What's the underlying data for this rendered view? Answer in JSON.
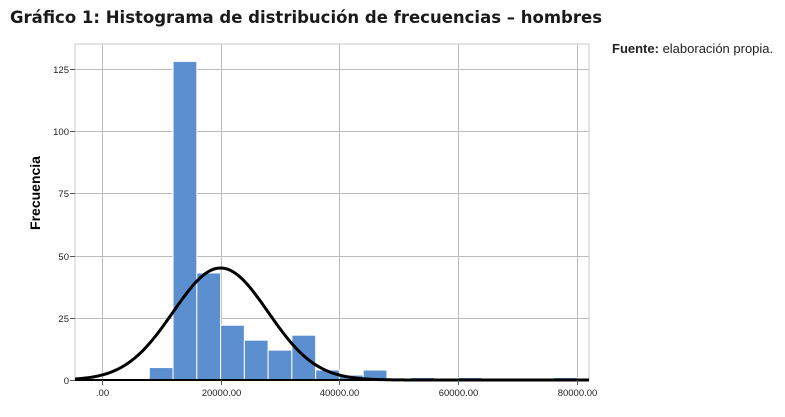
{
  "title": "Gráfico 1: Histograma de distribución de frecuencias – hombres",
  "source": {
    "label": "Fuente:",
    "text": " elaboración propia."
  },
  "chart_data": {
    "type": "bar",
    "ylabel": "Frecuencia",
    "xlim": [
      -4500,
      82000
    ],
    "ylim": [
      0,
      135
    ],
    "x_ticks": [
      0,
      20000,
      40000,
      60000,
      80000
    ],
    "x_tick_labels": [
      ".00",
      "20000.00",
      "40000.00",
      "60000.00",
      "80000.00"
    ],
    "y_ticks": [
      0,
      25,
      50,
      75,
      100,
      125
    ],
    "y_tick_labels": [
      "0",
      "25",
      "50",
      "75",
      "100",
      "125"
    ],
    "bin_width": 4000,
    "bins": [
      {
        "start": 8000,
        "end": 12000,
        "count": 5
      },
      {
        "start": 12000,
        "end": 16000,
        "count": 128
      },
      {
        "start": 16000,
        "end": 20000,
        "count": 43
      },
      {
        "start": 20000,
        "end": 24000,
        "count": 22
      },
      {
        "start": 24000,
        "end": 28000,
        "count": 16
      },
      {
        "start": 28000,
        "end": 32000,
        "count": 12
      },
      {
        "start": 32000,
        "end": 36000,
        "count": 18
      },
      {
        "start": 36000,
        "end": 40000,
        "count": 4
      },
      {
        "start": 40000,
        "end": 44000,
        "count": 2
      },
      {
        "start": 44000,
        "end": 48000,
        "count": 4
      },
      {
        "start": 48000,
        "end": 52000,
        "count": 0
      },
      {
        "start": 52000,
        "end": 56000,
        "count": 1
      },
      {
        "start": 56000,
        "end": 60000,
        "count": 0
      },
      {
        "start": 60000,
        "end": 64000,
        "count": 1
      },
      {
        "start": 64000,
        "end": 68000,
        "count": 0
      },
      {
        "start": 68000,
        "end": 72000,
        "count": 0
      },
      {
        "start": 72000,
        "end": 76000,
        "count": 0
      },
      {
        "start": 76000,
        "end": 80000,
        "count": 1
      }
    ],
    "normal_curve": {
      "mean": 20000,
      "sd": 8000,
      "peak": 45
    },
    "bar_color": "#5b8fd0",
    "curve_color": "#000000",
    "grid": true
  }
}
